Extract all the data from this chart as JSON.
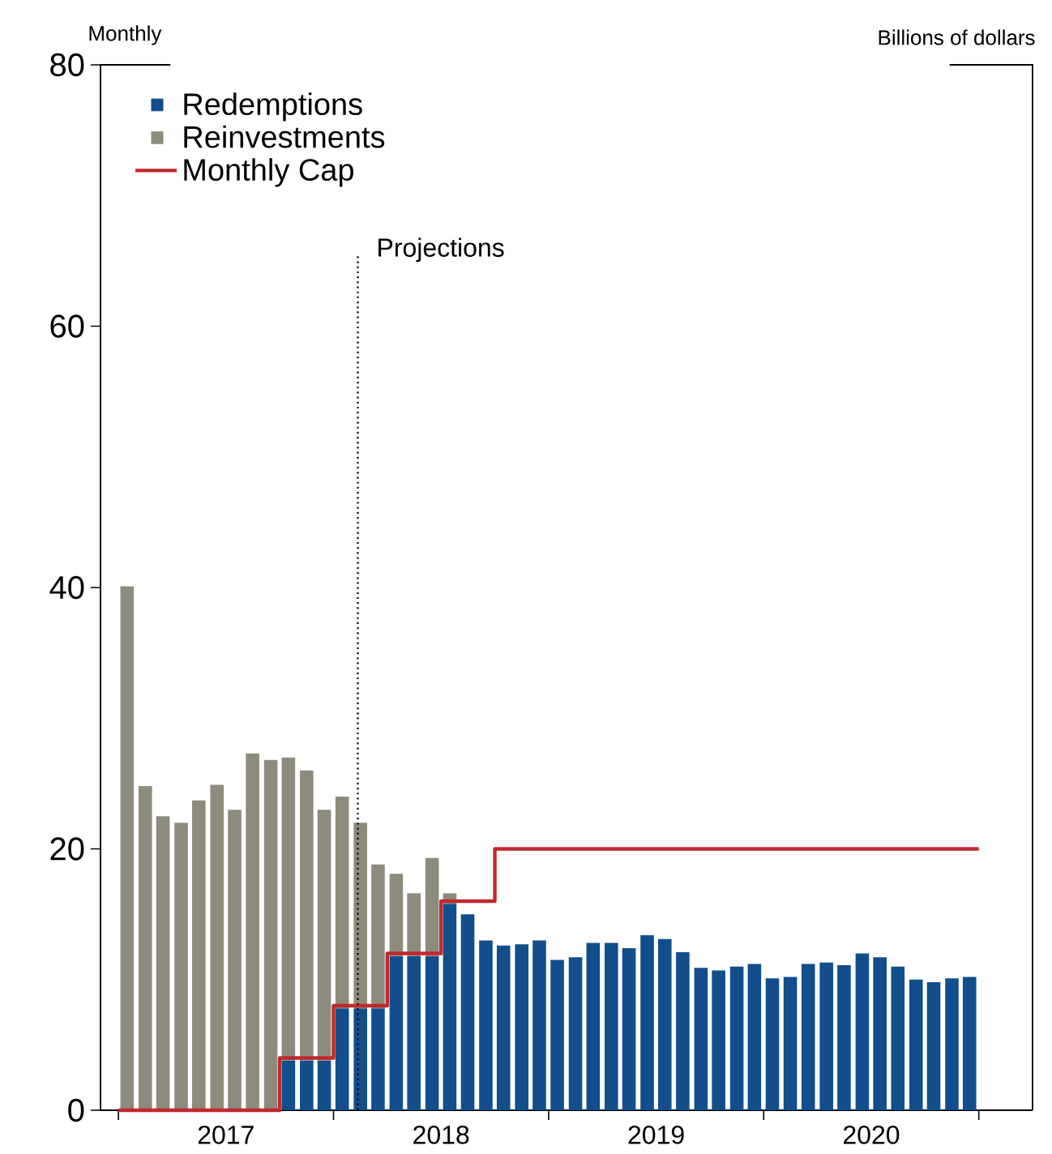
{
  "chart_data": {
    "type": "bar",
    "stacked": true,
    "subtitle": "Monthly",
    "ylabel": "Billions of dollars",
    "x": [
      "2017-01-16",
      "2017-02-15",
      "2017-03-16",
      "2017-04-16",
      "2017-05-16",
      "2017-06-16",
      "2017-07-16",
      "2017-08-16",
      "2017-09-16",
      "2017-10-16",
      "2017-11-16",
      "2017-12-16",
      "2018-01-16",
      "2018-02-15",
      "2018-03-16",
      "2018-04-16",
      "2018-05-16",
      "2018-06-16",
      "2018-07-16",
      "2018-08-16",
      "2018-09-16",
      "2018-10-16",
      "2018-11-16",
      "2018-12-16",
      "2019-01-16",
      "2019-02-15",
      "2019-03-16",
      "2019-04-16",
      "2019-05-16",
      "2019-06-16",
      "2019-07-16",
      "2019-08-16",
      "2019-09-16",
      "2019-10-16",
      "2019-11-16",
      "2019-12-16",
      "2020-01-16",
      "2020-02-15",
      "2020-03-16",
      "2020-04-16",
      "2020-05-16",
      "2020-06-16",
      "2020-07-16",
      "2020-08-16",
      "2020-09-16",
      "2020-10-16",
      "2020-11-16",
      "2020-12-16"
    ],
    "series": [
      {
        "name": "Redemptions",
        "color": "#114e8b",
        "values": [
          null,
          null,
          null,
          null,
          null,
          null,
          null,
          null,
          null,
          3.8,
          3.8,
          3.8,
          7.8,
          7.8,
          7.8,
          11.8,
          11.8,
          11.8,
          15.8,
          15.0,
          13.0,
          12.6,
          12.7,
          13.0,
          11.5,
          11.7,
          12.8,
          12.8,
          12.4,
          13.4,
          13.1,
          12.1,
          10.9,
          10.7,
          11.0,
          11.2,
          10.1,
          10.2,
          11.2,
          11.3,
          11.1,
          12.0,
          11.7,
          11.0,
          10.0,
          9.8,
          10.1,
          10.2
        ]
      },
      {
        "name": "Reinvestments",
        "color": "#8c8b7c",
        "values": [
          40.1,
          24.8,
          22.5,
          22.0,
          23.7,
          24.9,
          23.0,
          27.3,
          26.8,
          23.2,
          22.2,
          19.2,
          16.2,
          14.2,
          11.0,
          6.3,
          4.8,
          7.5,
          0.8,
          null,
          null,
          null,
          null,
          null,
          null,
          null,
          null,
          null,
          null,
          null,
          null,
          null,
          null,
          null,
          null,
          null,
          null,
          null,
          null,
          null,
          null,
          null,
          null,
          null,
          null,
          null,
          null,
          null
        ]
      },
      {
        "name": "Monthly Cap",
        "type": "step",
        "color": "#c0282d",
        "x": [
          "2017-01-01",
          "2017-10-01",
          "2018-01-01",
          "2018-04-01",
          "2018-07-01",
          "2018-10-01",
          "2021-01-01"
        ],
        "values": [
          0,
          4,
          8,
          12,
          16,
          20,
          20
        ]
      }
    ],
    "xlim": [
      "2016-12-01",
      "2021-04-01"
    ],
    "xticks": [
      {
        "value": "2017-01-01",
        "label": null
      },
      {
        "value": "2017-07-01",
        "label": "2017"
      },
      {
        "value": "2018-01-01",
        "label": null
      },
      {
        "value": "2018-07-01",
        "label": "2018"
      },
      {
        "value": "2019-01-01",
        "label": null
      },
      {
        "value": "2019-07-01",
        "label": "2019"
      },
      {
        "value": "2020-01-01",
        "label": null
      },
      {
        "value": "2020-07-01",
        "label": "2020"
      },
      {
        "value": "2021-01-01",
        "label": null
      }
    ],
    "ylim": [
      0,
      80
    ],
    "yticks": [
      0,
      20,
      40,
      60,
      80
    ],
    "ref_lines": [
      {
        "axis": "x",
        "value": "2018-02-11",
        "label": "Projections",
        "line_style": "dotted"
      }
    ],
    "legend": "top left",
    "grid": false
  }
}
